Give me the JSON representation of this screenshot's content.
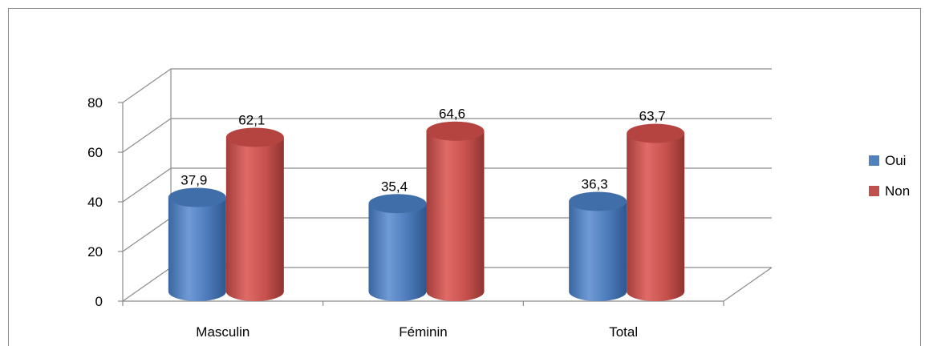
{
  "chart_data": {
    "type": "bar",
    "style": "3d-cylinder",
    "categories": [
      "Masculin",
      "Féminin",
      "Total"
    ],
    "series": [
      {
        "name": "Oui",
        "values": [
          37.9,
          35.4,
          36.3
        ],
        "labels": [
          "37,9",
          "35,4",
          "36,3"
        ],
        "color": "#4f81bd"
      },
      {
        "name": "Non",
        "values": [
          62.1,
          64.6,
          63.7
        ],
        "labels": [
          "62,1",
          "64,6",
          "63,7"
        ],
        "color": "#c0504d"
      }
    ],
    "yticks": [
      "0",
      "20",
      "40",
      "60",
      "80"
    ],
    "ylim": [
      0,
      80
    ],
    "grid": true,
    "legend_position": "right"
  }
}
